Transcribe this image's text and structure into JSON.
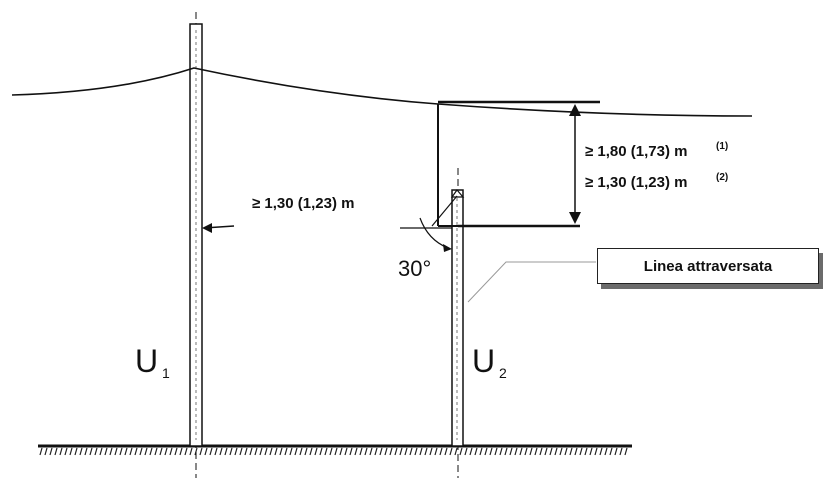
{
  "labels": {
    "horizontal_clearance": "≥ 1,30 (1,23) m",
    "vertical_clearance_1": "≥ 1,80 (1,73) m",
    "vertical_clearance_1_note": "(1)",
    "vertical_clearance_2": "≥ 1,30 (1,23) m",
    "vertical_clearance_2_note": "(2)",
    "angle": "30°",
    "crossed_line": "Linea attraversata",
    "support_1": "U",
    "support_1_sub": "1",
    "support_2": "U",
    "support_2_sub": "2"
  }
}
